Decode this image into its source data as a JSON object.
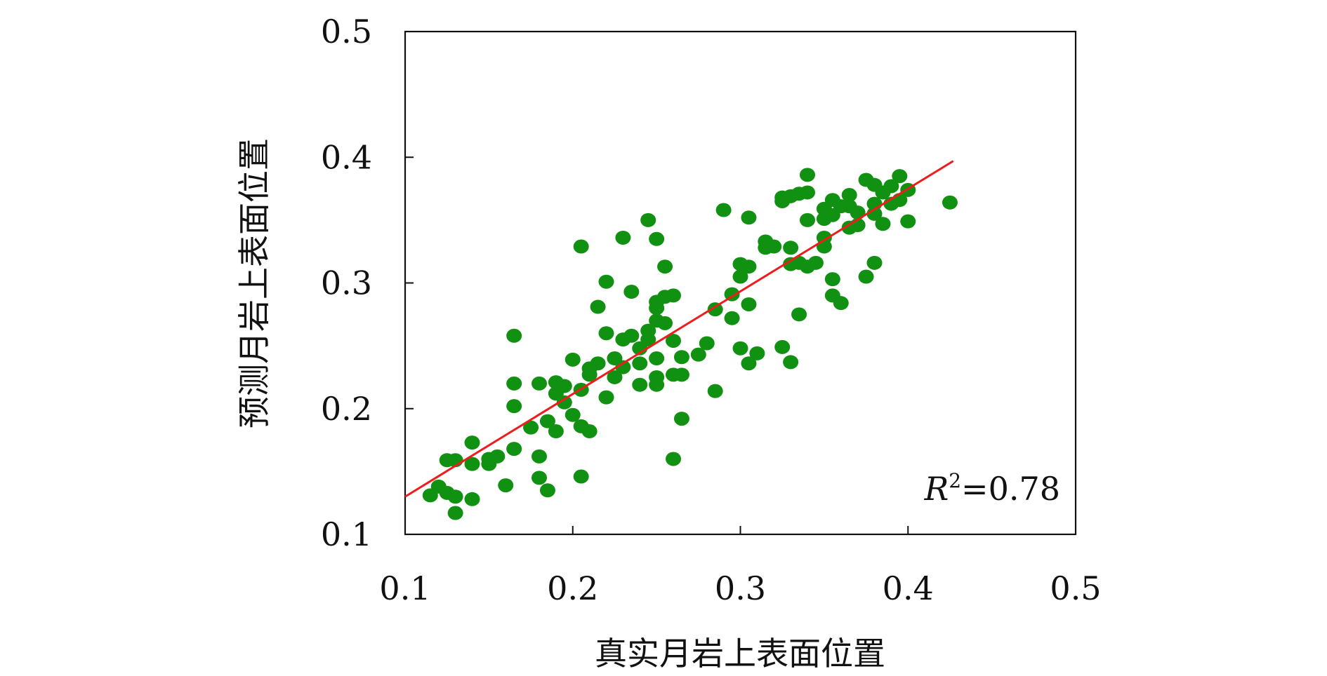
{
  "chart_data": {
    "type": "scatter",
    "xlabel": "真实月岩上表面位置",
    "ylabel": "预测月岩上表面位置",
    "xlim": [
      0.1,
      0.5
    ],
    "ylim": [
      0.1,
      0.5
    ],
    "xticks": [
      0.1,
      0.2,
      0.3,
      0.4,
      0.5
    ],
    "yticks": [
      0.1,
      0.2,
      0.3,
      0.4,
      0.5
    ],
    "xtick_labels": [
      "0.1",
      "0.2",
      "0.3",
      "0.4",
      "0.5"
    ],
    "ytick_labels": [
      "0.1",
      "0.2",
      "0.3",
      "0.4",
      "0.5"
    ],
    "annotation": {
      "r_symbol": "R",
      "r_exponent": "2",
      "r_value": "=0.78"
    },
    "point_color": "#119111",
    "fit_color": "#ee1c1c",
    "fit_line": {
      "x": [
        0.1,
        0.427
      ],
      "y": [
        0.13,
        0.397
      ]
    },
    "series": [
      {
        "points": [
          [
            0.115,
            0.131
          ],
          [
            0.12,
            0.138
          ],
          [
            0.125,
            0.133
          ],
          [
            0.13,
            0.13
          ],
          [
            0.13,
            0.117
          ],
          [
            0.14,
            0.128
          ],
          [
            0.125,
            0.159
          ],
          [
            0.13,
            0.159
          ],
          [
            0.14,
            0.156
          ],
          [
            0.14,
            0.173
          ],
          [
            0.15,
            0.156
          ],
          [
            0.15,
            0.16
          ],
          [
            0.155,
            0.162
          ],
          [
            0.16,
            0.139
          ],
          [
            0.165,
            0.168
          ],
          [
            0.165,
            0.202
          ],
          [
            0.165,
            0.22
          ],
          [
            0.165,
            0.258
          ],
          [
            0.175,
            0.185
          ],
          [
            0.18,
            0.162
          ],
          [
            0.18,
            0.145
          ],
          [
            0.18,
            0.22
          ],
          [
            0.185,
            0.135
          ],
          [
            0.185,
            0.19
          ],
          [
            0.19,
            0.182
          ],
          [
            0.19,
            0.212
          ],
          [
            0.19,
            0.221
          ],
          [
            0.195,
            0.205
          ],
          [
            0.195,
            0.218
          ],
          [
            0.2,
            0.195
          ],
          [
            0.2,
            0.239
          ],
          [
            0.205,
            0.329
          ],
          [
            0.205,
            0.186
          ],
          [
            0.205,
            0.146
          ],
          [
            0.205,
            0.215
          ],
          [
            0.21,
            0.182
          ],
          [
            0.21,
            0.232
          ],
          [
            0.21,
            0.227
          ],
          [
            0.215,
            0.236
          ],
          [
            0.215,
            0.281
          ],
          [
            0.22,
            0.301
          ],
          [
            0.22,
            0.26
          ],
          [
            0.22,
            0.209
          ],
          [
            0.225,
            0.225
          ],
          [
            0.225,
            0.24
          ],
          [
            0.23,
            0.336
          ],
          [
            0.23,
            0.255
          ],
          [
            0.23,
            0.233
          ],
          [
            0.235,
            0.293
          ],
          [
            0.235,
            0.258
          ],
          [
            0.24,
            0.248
          ],
          [
            0.24,
            0.219
          ],
          [
            0.24,
            0.236
          ],
          [
            0.245,
            0.35
          ],
          [
            0.245,
            0.262
          ],
          [
            0.245,
            0.255
          ],
          [
            0.25,
            0.335
          ],
          [
            0.25,
            0.285
          ],
          [
            0.25,
            0.28
          ],
          [
            0.25,
            0.27
          ],
          [
            0.25,
            0.24
          ],
          [
            0.25,
            0.225
          ],
          [
            0.25,
            0.219
          ],
          [
            0.255,
            0.289
          ],
          [
            0.255,
            0.313
          ],
          [
            0.255,
            0.268
          ],
          [
            0.26,
            0.29
          ],
          [
            0.26,
            0.254
          ],
          [
            0.26,
            0.227
          ],
          [
            0.26,
            0.16
          ],
          [
            0.265,
            0.227
          ],
          [
            0.265,
            0.241
          ],
          [
            0.265,
            0.192
          ],
          [
            0.275,
            0.243
          ],
          [
            0.28,
            0.252
          ],
          [
            0.285,
            0.214
          ],
          [
            0.285,
            0.279
          ],
          [
            0.29,
            0.358
          ],
          [
            0.295,
            0.291
          ],
          [
            0.295,
            0.272
          ],
          [
            0.3,
            0.248
          ],
          [
            0.3,
            0.305
          ],
          [
            0.3,
            0.315
          ],
          [
            0.305,
            0.352
          ],
          [
            0.305,
            0.313
          ],
          [
            0.305,
            0.283
          ],
          [
            0.305,
            0.236
          ],
          [
            0.31,
            0.244
          ],
          [
            0.315,
            0.333
          ],
          [
            0.315,
            0.328
          ],
          [
            0.32,
            0.329
          ],
          [
            0.325,
            0.249
          ],
          [
            0.325,
            0.365
          ],
          [
            0.325,
            0.368
          ],
          [
            0.33,
            0.369
          ],
          [
            0.33,
            0.328
          ],
          [
            0.33,
            0.315
          ],
          [
            0.33,
            0.237
          ],
          [
            0.335,
            0.371
          ],
          [
            0.335,
            0.275
          ],
          [
            0.335,
            0.316
          ],
          [
            0.34,
            0.372
          ],
          [
            0.34,
            0.386
          ],
          [
            0.34,
            0.35
          ],
          [
            0.34,
            0.313
          ],
          [
            0.345,
            0.316
          ],
          [
            0.35,
            0.359
          ],
          [
            0.35,
            0.351
          ],
          [
            0.35,
            0.336
          ],
          [
            0.35,
            0.329
          ],
          [
            0.355,
            0.366
          ],
          [
            0.355,
            0.354
          ],
          [
            0.355,
            0.303
          ],
          [
            0.355,
            0.29
          ],
          [
            0.36,
            0.284
          ],
          [
            0.36,
            0.361
          ],
          [
            0.365,
            0.37
          ],
          [
            0.365,
            0.361
          ],
          [
            0.365,
            0.344
          ],
          [
            0.37,
            0.356
          ],
          [
            0.37,
            0.346
          ],
          [
            0.375,
            0.382
          ],
          [
            0.375,
            0.305
          ],
          [
            0.38,
            0.363
          ],
          [
            0.38,
            0.355
          ],
          [
            0.38,
            0.316
          ],
          [
            0.38,
            0.378
          ],
          [
            0.385,
            0.372
          ],
          [
            0.385,
            0.347
          ],
          [
            0.39,
            0.377
          ],
          [
            0.39,
            0.363
          ],
          [
            0.395,
            0.385
          ],
          [
            0.395,
            0.366
          ],
          [
            0.4,
            0.374
          ],
          [
            0.4,
            0.349
          ],
          [
            0.425,
            0.364
          ]
        ]
      }
    ]
  }
}
